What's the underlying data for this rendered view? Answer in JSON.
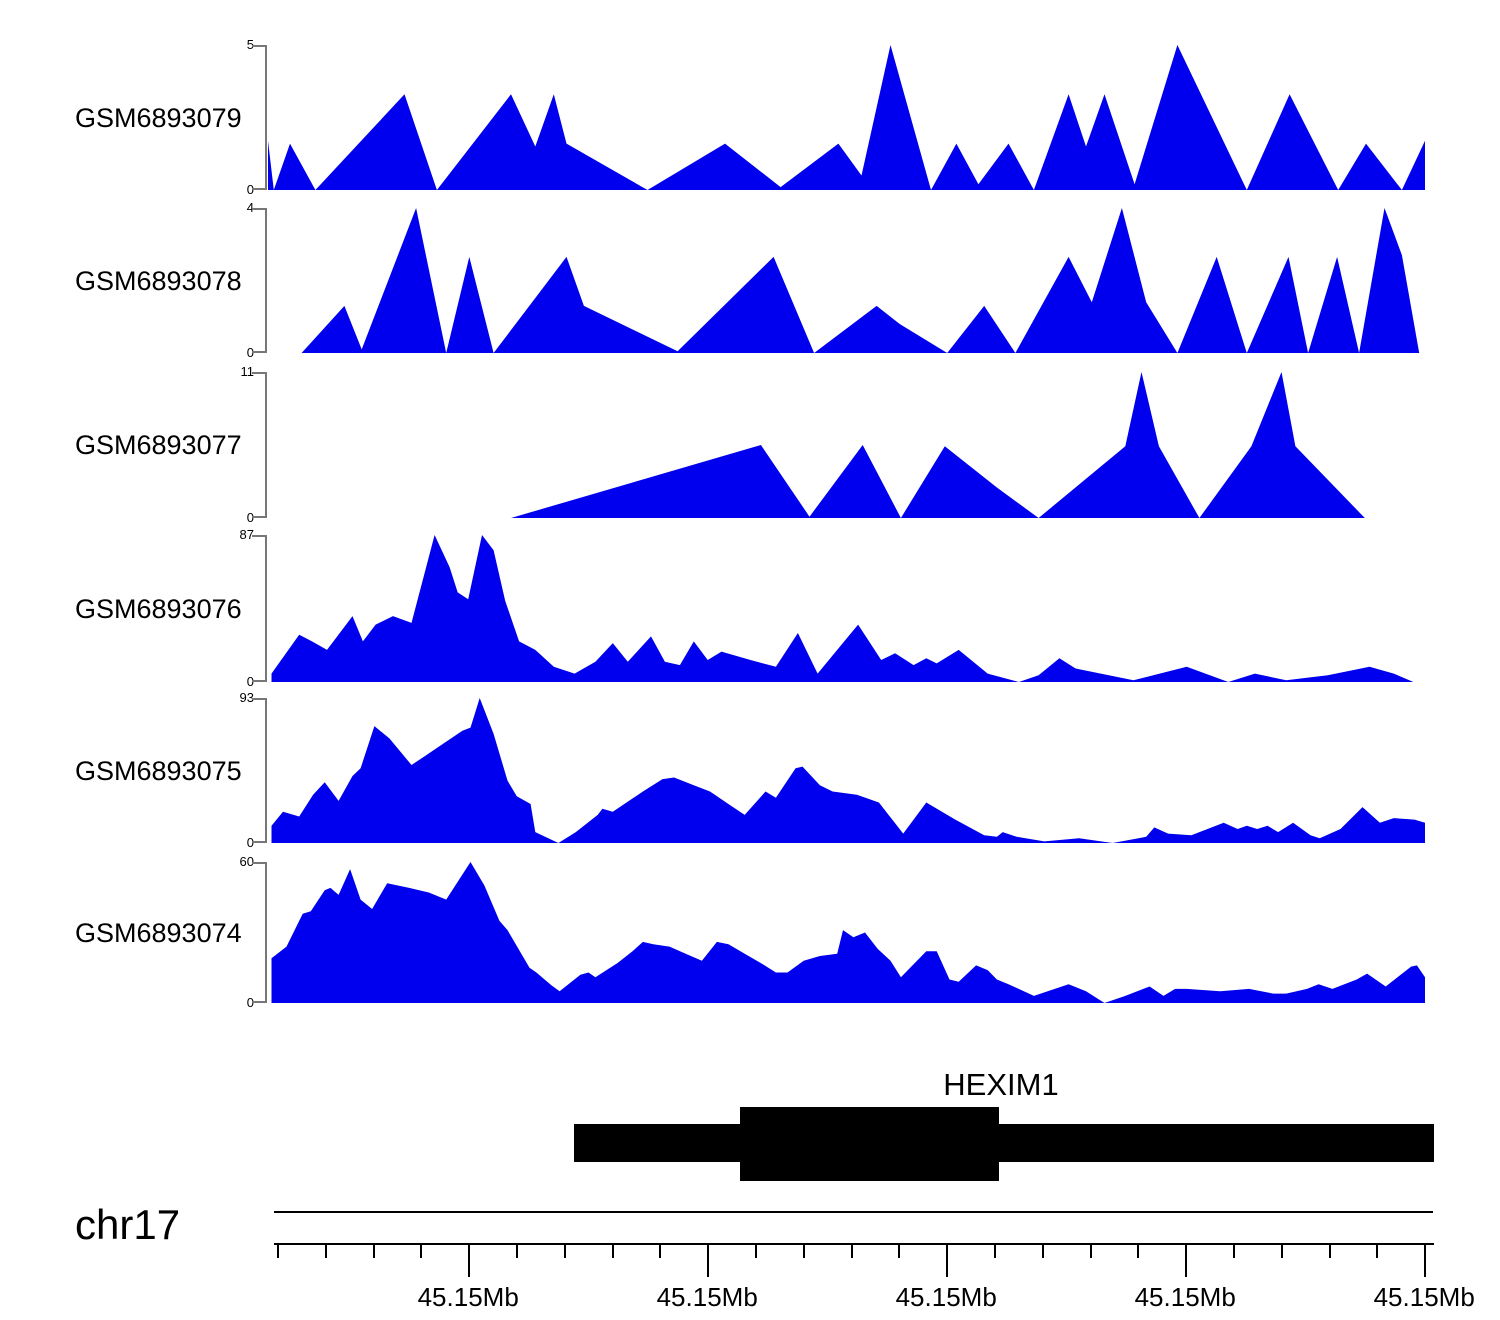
{
  "colors": {
    "area_fill": "#0000EE",
    "axis_bracket": "#777777",
    "gene_bar": "#000000",
    "text": "#000000"
  },
  "chart_data": {
    "type": "area",
    "title": "",
    "chromosome": "chr17",
    "gene": {
      "name": "HEXIM1"
    },
    "x_axis": {
      "tick_label": "45.15Mb",
      "major_labels": [
        "45.15Mb",
        "45.15Mb",
        "45.15Mb",
        "45.15Mb",
        "45.15Mb"
      ],
      "minor_ticks_per_major": 5,
      "grid": false
    },
    "tracks": [
      {
        "label": "GSM6893079",
        "ymax": 5,
        "ymax_label": "5",
        "ymin_label": "0",
        "points": [
          [
            0,
            1.7
          ],
          [
            0.005,
            0
          ],
          [
            0.019,
            1.6
          ],
          [
            0.041,
            0
          ],
          [
            0.118,
            3.3
          ],
          [
            0.146,
            0
          ],
          [
            0.21,
            3.3
          ],
          [
            0.231,
            1.5
          ],
          [
            0.247,
            3.3
          ],
          [
            0.258,
            1.6
          ],
          [
            0.328,
            0
          ],
          [
            0.395,
            1.6
          ],
          [
            0.443,
            0.1
          ],
          [
            0.493,
            1.6
          ],
          [
            0.513,
            0.5
          ],
          [
            0.538,
            5
          ],
          [
            0.573,
            0
          ],
          [
            0.595,
            1.6
          ],
          [
            0.614,
            0.2
          ],
          [
            0.64,
            1.6
          ],
          [
            0.662,
            0
          ],
          [
            0.692,
            3.3
          ],
          [
            0.707,
            1.5
          ],
          [
            0.723,
            3.3
          ],
          [
            0.749,
            0.2
          ],
          [
            0.786,
            5
          ],
          [
            0.846,
            0
          ],
          [
            0.883,
            3.3
          ],
          [
            0.925,
            0
          ],
          [
            0.949,
            1.6
          ],
          [
            0.98,
            0
          ],
          [
            1,
            1.7
          ]
        ]
      },
      {
        "label": "GSM6893078",
        "ymax": 4,
        "ymax_label": "4",
        "ymin_label": "0",
        "points": [
          [
            0,
            0
          ],
          [
            0.029,
            0
          ],
          [
            0.066,
            1.3
          ],
          [
            0.081,
            0.1
          ],
          [
            0.128,
            4
          ],
          [
            0.154,
            0
          ],
          [
            0.174,
            2.65
          ],
          [
            0.195,
            0
          ],
          [
            0.258,
            2.65
          ],
          [
            0.273,
            1.3
          ],
          [
            0.354,
            0.05
          ],
          [
            0.437,
            2.65
          ],
          [
            0.472,
            0
          ],
          [
            0.526,
            1.3
          ],
          [
            0.546,
            0.8
          ],
          [
            0.587,
            0
          ],
          [
            0.619,
            1.3
          ],
          [
            0.646,
            0
          ],
          [
            0.692,
            2.65
          ],
          [
            0.712,
            1.4
          ],
          [
            0.738,
            4
          ],
          [
            0.759,
            1.4
          ],
          [
            0.786,
            0
          ],
          [
            0.82,
            2.65
          ],
          [
            0.846,
            0
          ],
          [
            0.882,
            2.65
          ],
          [
            0.899,
            0
          ],
          [
            0.924,
            2.65
          ],
          [
            0.943,
            0
          ],
          [
            0.965,
            4
          ],
          [
            0.98,
            2.7
          ],
          [
            0.995,
            0
          ],
          [
            1,
            0
          ]
        ]
      },
      {
        "label": "GSM6893077",
        "ymax": 11,
        "ymax_label": "11",
        "ymin_label": "0",
        "points": [
          [
            0,
            0
          ],
          [
            0.21,
            0
          ],
          [
            0.426,
            5.5
          ],
          [
            0.468,
            0.1
          ],
          [
            0.514,
            5.5
          ],
          [
            0.547,
            0
          ],
          [
            0.585,
            5.4
          ],
          [
            0.63,
            2.3
          ],
          [
            0.666,
            0
          ],
          [
            0.741,
            5.4
          ],
          [
            0.755,
            11
          ],
          [
            0.77,
            5.4
          ],
          [
            0.805,
            0
          ],
          [
            0.85,
            5.4
          ],
          [
            0.876,
            11
          ],
          [
            0.888,
            5.4
          ],
          [
            0.948,
            0
          ],
          [
            1,
            0
          ]
        ]
      },
      {
        "label": "GSM6893076",
        "ymax": 87,
        "ymax_label": "87",
        "ymin_label": "0",
        "points": [
          [
            0.003,
            5
          ],
          [
            0.027,
            28
          ],
          [
            0.038,
            24
          ],
          [
            0.051,
            19
          ],
          [
            0.073,
            39
          ],
          [
            0.082,
            24
          ],
          [
            0.093,
            34
          ],
          [
            0.108,
            39
          ],
          [
            0.124,
            35
          ],
          [
            0.144,
            87
          ],
          [
            0.157,
            68
          ],
          [
            0.164,
            53
          ],
          [
            0.173,
            49
          ],
          [
            0.185,
            87
          ],
          [
            0.195,
            78
          ],
          [
            0.205,
            48
          ],
          [
            0.217,
            24
          ],
          [
            0.231,
            19
          ],
          [
            0.247,
            9
          ],
          [
            0.265,
            5
          ],
          [
            0.283,
            12
          ],
          [
            0.298,
            23
          ],
          [
            0.311,
            12
          ],
          [
            0.331,
            27
          ],
          [
            0.343,
            12
          ],
          [
            0.356,
            10
          ],
          [
            0.368,
            24
          ],
          [
            0.38,
            13
          ],
          [
            0.392,
            18
          ],
          [
            0.417,
            13
          ],
          [
            0.439,
            9
          ],
          [
            0.458,
            29
          ],
          [
            0.475,
            5
          ],
          [
            0.51,
            34
          ],
          [
            0.53,
            13
          ],
          [
            0.542,
            17
          ],
          [
            0.558,
            10
          ],
          [
            0.569,
            14
          ],
          [
            0.578,
            11
          ],
          [
            0.597,
            19
          ],
          [
            0.622,
            5
          ],
          [
            0.649,
            0
          ],
          [
            0.666,
            4
          ],
          [
            0.684,
            14
          ],
          [
            0.698,
            8
          ],
          [
            0.748,
            1
          ],
          [
            0.794,
            9
          ],
          [
            0.83,
            0
          ],
          [
            0.853,
            5
          ],
          [
            0.88,
            1
          ],
          [
            0.916,
            4
          ],
          [
            0.952,
            9
          ],
          [
            0.973,
            5
          ],
          [
            0.99,
            0
          ],
          [
            1,
            0
          ]
        ]
      },
      {
        "label": "GSM6893075",
        "ymax": 93,
        "ymax_label": "93",
        "ymin_label": "0",
        "points": [
          [
            0.003,
            11
          ],
          [
            0.013,
            20
          ],
          [
            0.027,
            17
          ],
          [
            0.039,
            31
          ],
          [
            0.049,
            39
          ],
          [
            0.061,
            27
          ],
          [
            0.073,
            43
          ],
          [
            0.08,
            48
          ],
          [
            0.092,
            75
          ],
          [
            0.105,
            67
          ],
          [
            0.124,
            50
          ],
          [
            0.136,
            56
          ],
          [
            0.144,
            60
          ],
          [
            0.168,
            72
          ],
          [
            0.175,
            74
          ],
          [
            0.183,
            93
          ],
          [
            0.195,
            70
          ],
          [
            0.207,
            40
          ],
          [
            0.215,
            30
          ],
          [
            0.227,
            25
          ],
          [
            0.231,
            7
          ],
          [
            0.251,
            0
          ],
          [
            0.266,
            7
          ],
          [
            0.285,
            18
          ],
          [
            0.289,
            22
          ],
          [
            0.298,
            20
          ],
          [
            0.324,
            33
          ],
          [
            0.341,
            41
          ],
          [
            0.351,
            42
          ],
          [
            0.368,
            37
          ],
          [
            0.382,
            33
          ],
          [
            0.4,
            24
          ],
          [
            0.412,
            18
          ],
          [
            0.43,
            33
          ],
          [
            0.439,
            29
          ],
          [
            0.456,
            48
          ],
          [
            0.462,
            49
          ],
          [
            0.477,
            37
          ],
          [
            0.488,
            33
          ],
          [
            0.509,
            31
          ],
          [
            0.528,
            26
          ],
          [
            0.549,
            6
          ],
          [
            0.569,
            26
          ],
          [
            0.594,
            15
          ],
          [
            0.619,
            5
          ],
          [
            0.63,
            4
          ],
          [
            0.635,
            7
          ],
          [
            0.647,
            4
          ],
          [
            0.671,
            1
          ],
          [
            0.701,
            3
          ],
          [
            0.73,
            0
          ],
          [
            0.759,
            4
          ],
          [
            0.766,
            10
          ],
          [
            0.778,
            6
          ],
          [
            0.798,
            5
          ],
          [
            0.826,
            13
          ],
          [
            0.838,
            9
          ],
          [
            0.846,
            11
          ],
          [
            0.855,
            9
          ],
          [
            0.864,
            11
          ],
          [
            0.873,
            7
          ],
          [
            0.886,
            13
          ],
          [
            0.901,
            5
          ],
          [
            0.909,
            3
          ],
          [
            0.927,
            9
          ],
          [
            0.946,
            23
          ],
          [
            0.961,
            13
          ],
          [
            0.973,
            16
          ],
          [
            0.991,
            15
          ],
          [
            1,
            13
          ]
        ]
      },
      {
        "label": "GSM6893074",
        "ymax": 60,
        "ymax_label": "60",
        "ymin_label": "0",
        "points": [
          [
            0.003,
            19
          ],
          [
            0.016,
            24
          ],
          [
            0.03,
            38
          ],
          [
            0.037,
            39
          ],
          [
            0.049,
            48
          ],
          [
            0.054,
            49
          ],
          [
            0.061,
            46
          ],
          [
            0.071,
            57
          ],
          [
            0.08,
            44
          ],
          [
            0.09,
            40
          ],
          [
            0.103,
            51
          ],
          [
            0.122,
            49
          ],
          [
            0.139,
            47
          ],
          [
            0.154,
            44
          ],
          [
            0.175,
            60
          ],
          [
            0.187,
            50
          ],
          [
            0.2,
            35
          ],
          [
            0.207,
            31
          ],
          [
            0.226,
            15
          ],
          [
            0.232,
            13
          ],
          [
            0.245,
            7.5
          ],
          [
            0.252,
            5
          ],
          [
            0.27,
            12
          ],
          [
            0.277,
            13
          ],
          [
            0.283,
            11
          ],
          [
            0.302,
            17
          ],
          [
            0.315,
            22
          ],
          [
            0.324,
            26
          ],
          [
            0.333,
            25
          ],
          [
            0.347,
            24
          ],
          [
            0.361,
            21
          ],
          [
            0.375,
            18
          ],
          [
            0.388,
            26
          ],
          [
            0.398,
            25
          ],
          [
            0.412,
            21
          ],
          [
            0.426,
            17
          ],
          [
            0.439,
            13
          ],
          [
            0.449,
            13
          ],
          [
            0.463,
            18
          ],
          [
            0.477,
            20
          ],
          [
            0.492,
            21
          ],
          [
            0.497,
            31
          ],
          [
            0.506,
            28
          ],
          [
            0.516,
            30
          ],
          [
            0.527,
            23
          ],
          [
            0.538,
            18
          ],
          [
            0.547,
            11
          ],
          [
            0.569,
            22
          ],
          [
            0.578,
            22
          ],
          [
            0.589,
            10
          ],
          [
            0.597,
            9
          ],
          [
            0.612,
            16
          ],
          [
            0.622,
            14
          ],
          [
            0.63,
            10
          ],
          [
            0.64,
            8
          ],
          [
            0.662,
            3
          ],
          [
            0.68,
            6
          ],
          [
            0.692,
            8
          ],
          [
            0.707,
            5
          ],
          [
            0.723,
            0
          ],
          [
            0.741,
            3
          ],
          [
            0.762,
            7
          ],
          [
            0.774,
            3
          ],
          [
            0.784,
            6
          ],
          [
            0.794,
            6
          ],
          [
            0.823,
            5
          ],
          [
            0.848,
            6
          ],
          [
            0.869,
            4
          ],
          [
            0.88,
            4
          ],
          [
            0.898,
            6
          ],
          [
            0.908,
            8
          ],
          [
            0.92,
            6
          ],
          [
            0.941,
            10
          ],
          [
            0.95,
            12.5
          ],
          [
            0.966,
            7
          ],
          [
            0.988,
            15.5
          ],
          [
            0.993,
            16
          ],
          [
            1,
            11
          ]
        ]
      }
    ]
  }
}
